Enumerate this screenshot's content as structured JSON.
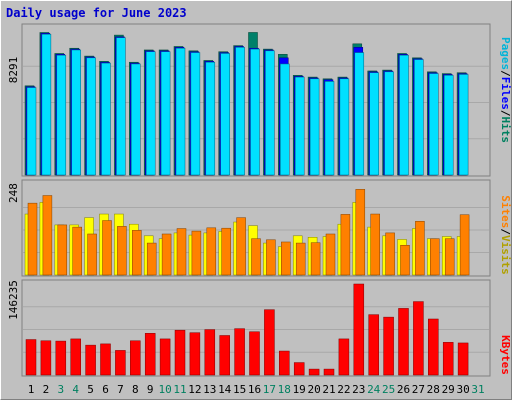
{
  "title": "Daily usage for June 2023",
  "colors": {
    "background": "#c0c0c0",
    "pages": "#00b4d8",
    "pages_fill": "#00e0ff",
    "files": "#0000ff",
    "hits": "#008060",
    "hits_fill": "#00806a",
    "visits": "#ffff00",
    "sites": "#ff8000",
    "kbytes": "#ff0000",
    "weekend_label": "#008060",
    "weekday_label": "#000000",
    "title": "#0000cc"
  },
  "chart_data": [
    {
      "type": "bar",
      "name": "hits-files-pages",
      "y_tick_label": "8291",
      "ymax": 8291,
      "legend": [
        "Pages",
        "/",
        "Files",
        "/",
        "Hits"
      ],
      "x": [
        1,
        2,
        3,
        4,
        5,
        6,
        7,
        8,
        9,
        10,
        11,
        12,
        13,
        14,
        15,
        16,
        17,
        18,
        19,
        20,
        21,
        22,
        23,
        24,
        25,
        26,
        27,
        28,
        29,
        30
      ],
      "series": [
        {
          "name": "Hits",
          "values": [
            5100,
            8150,
            6950,
            7250,
            6800,
            6500,
            8000,
            6450,
            7150,
            7150,
            7350,
            7100,
            6550,
            7050,
            7400,
            8150,
            7200,
            6900,
            5700,
            5600,
            5500,
            5600,
            7500,
            5950,
            6000,
            6950,
            6700,
            5900,
            5800,
            5850
          ]
        },
        {
          "name": "Files",
          "values": [
            5050,
            8100,
            6900,
            7200,
            6750,
            6450,
            7900,
            6400,
            7100,
            7100,
            7300,
            7050,
            6500,
            7000,
            7350,
            7250,
            7150,
            6700,
            5650,
            5550,
            5450,
            5550,
            7300,
            5900,
            5950,
            6900,
            6650,
            5850,
            5750,
            5800
          ]
        },
        {
          "name": "Pages",
          "values": [
            5000,
            8050,
            6850,
            7150,
            6700,
            6400,
            7850,
            6350,
            7050,
            7050,
            7250,
            7000,
            6450,
            6950,
            7300,
            7200,
            7100,
            6350,
            5600,
            5500,
            5350,
            5500,
            7000,
            5850,
            5900,
            6850,
            6600,
            5800,
            5700,
            5750
          ]
        }
      ]
    },
    {
      "type": "bar",
      "name": "visits-sites",
      "y_tick_label": "248",
      "ymax": 248,
      "legend": [
        "Sites",
        "/",
        "Visits"
      ],
      "x": [
        1,
        2,
        3,
        4,
        5,
        6,
        7,
        8,
        9,
        10,
        11,
        12,
        13,
        14,
        15,
        16,
        17,
        18,
        19,
        20,
        21,
        22,
        23,
        24,
        25,
        26,
        27,
        28,
        29,
        30
      ],
      "series": [
        {
          "name": "Visits",
          "values": [
            168,
            200,
            138,
            138,
            158,
            168,
            168,
            140,
            108,
            100,
            116,
            110,
            116,
            120,
            146,
            136,
            88,
            78,
            108,
            104,
            106,
            140,
            200,
            132,
            108,
            98,
            128,
            100,
            106,
            106
          ]
        },
        {
          "name": "Sites",
          "values": [
            198,
            219,
            138,
            132,
            113,
            150,
            134,
            123,
            88,
            113,
            128,
            121,
            130,
            129,
            158,
            100,
            97,
            91,
            88,
            89,
            113,
            167,
            236,
            168,
            116,
            82,
            148,
            100,
            100,
            166
          ]
        }
      ]
    },
    {
      "type": "bar",
      "name": "kbytes",
      "y_tick_label": "146235",
      "ymax": 146235,
      "legend": [
        "KBytes"
      ],
      "x": [
        1,
        2,
        3,
        4,
        5,
        6,
        7,
        8,
        9,
        10,
        11,
        12,
        13,
        14,
        15,
        16,
        17,
        18,
        19,
        20,
        21,
        22,
        23,
        24,
        25,
        26,
        27,
        28,
        29,
        30
      ],
      "series": [
        {
          "name": "KBytes",
          "values": [
            57000,
            55000,
            54500,
            58000,
            48000,
            50000,
            39500,
            55000,
            67000,
            58000,
            72000,
            68000,
            73000,
            63500,
            74500,
            69500,
            105000,
            38500,
            20000,
            9500,
            9500,
            58000,
            146235,
            97000,
            93000,
            107000,
            118000,
            90000,
            52500,
            51500
          ]
        }
      ]
    }
  ],
  "x_labels": [
    "1",
    "2",
    "3",
    "4",
    "5",
    "6",
    "7",
    "8",
    "9",
    "10",
    "11",
    "12",
    "13",
    "14",
    "15",
    "16",
    "17",
    "18",
    "19",
    "20",
    "21",
    "22",
    "23",
    "24",
    "25",
    "26",
    "27",
    "28",
    "29",
    "30",
    "31"
  ],
  "weekend_days": [
    3,
    4,
    10,
    11,
    17,
    18,
    24,
    25,
    31
  ]
}
